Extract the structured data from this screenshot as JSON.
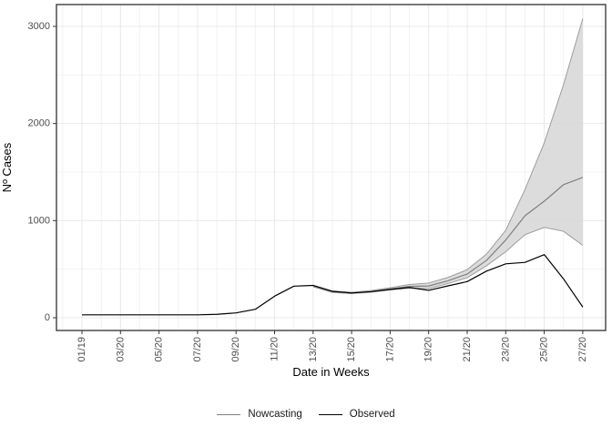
{
  "chart_data": {
    "type": "line",
    "title": "",
    "xlabel": "Date in Weeks",
    "ylabel": "Nº Cases",
    "x_unit": "week index",
    "weeks": [
      1,
      2,
      3,
      4,
      5,
      6,
      7,
      8,
      9,
      10,
      11,
      12,
      13,
      14,
      15,
      16,
      17,
      18,
      19,
      20,
      21,
      22,
      23,
      24,
      25,
      26,
      27
    ],
    "x_tick_weeks": [
      1,
      3,
      5,
      7,
      9,
      11,
      13,
      15,
      17,
      19,
      21,
      23,
      25,
      27
    ],
    "x_tick_labels": [
      "01/19",
      "03/20",
      "05/20",
      "07/20",
      "09/20",
      "11/20",
      "13/20",
      "15/20",
      "17/20",
      "19/20",
      "21/20",
      "23/20",
      "25/20",
      "27/20"
    ],
    "y_ticks": [
      0,
      1000,
      2000,
      3000
    ],
    "y_tick_labels": [
      "0",
      "1000",
      "2000",
      "3000"
    ],
    "ylim": [
      -120,
      3230
    ],
    "grid": "on",
    "legend_position": "bottom",
    "series": [
      {
        "name": "Observed",
        "color": "#000000",
        "values": [
          30,
          30,
          30,
          30,
          30,
          30,
          30,
          35,
          50,
          87,
          222,
          325,
          333,
          272,
          255,
          268,
          292,
          312,
          282,
          328,
          372,
          480,
          555,
          570,
          650,
          400,
          110
        ]
      },
      {
        "name": "Nowcasting",
        "color": "#808080",
        "values": [
          null,
          null,
          null,
          null,
          null,
          null,
          null,
          null,
          null,
          null,
          null,
          null,
          325,
          268,
          255,
          270,
          297,
          322,
          327,
          380,
          450,
          590,
          800,
          1050,
          1200,
          1370,
          1445
        ]
      }
    ],
    "confidence_band": {
      "series": "Nowcasting",
      "start_week": 13,
      "upper": [
        332,
        276,
        262,
        280,
        310,
        342,
        358,
        415,
        495,
        655,
        900,
        1320,
        1800,
        2400,
        3080
      ],
      "lower": [
        318,
        260,
        248,
        262,
        286,
        305,
        300,
        352,
        412,
        535,
        680,
        855,
        930,
        890,
        745
      ],
      "fill": "#d8d8d8",
      "edge_color": "#9c9c9c"
    }
  },
  "legend": {
    "items": [
      {
        "label": "Nowcasting",
        "color": "#808080"
      },
      {
        "label": "Observed",
        "color": "#000000"
      }
    ]
  },
  "colors": {
    "background": "#ffffff",
    "panel_background": "#ffffff",
    "panel_border": "#2f2f2f",
    "grid_major": "#e8e8e8",
    "grid_minor": "#f2f2f2",
    "tick_text": "#4d4d4d",
    "axis_title": "#000000"
  }
}
